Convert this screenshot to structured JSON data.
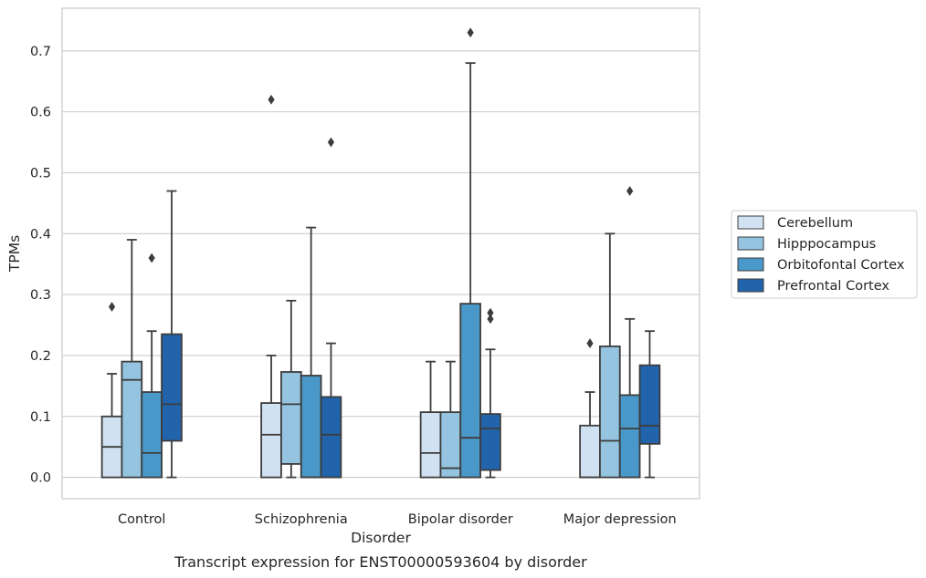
{
  "caption": "Transcript expression for ENST00000593604 by disorder",
  "chart_data": {
    "type": "boxplot",
    "xlabel": "Disorder",
    "ylabel": "TPMs",
    "ylim": [
      -0.035,
      0.77
    ],
    "yticks": [
      0.0,
      0.1,
      0.2,
      0.3,
      0.4,
      0.5,
      0.6,
      0.7
    ],
    "ytick_labels": [
      "0.0",
      "0.1",
      "0.2",
      "0.3",
      "0.4",
      "0.5",
      "0.6",
      "0.7"
    ],
    "grid": true,
    "legend_position": "right",
    "categories": [
      "Control",
      "Schizophrenia",
      "Bipolar disorder",
      "Major depression"
    ],
    "series": [
      {
        "name": "Cerebellum",
        "color": "#d0e1f2",
        "boxes": [
          {
            "whislo": 0.0,
            "q1": 0.0,
            "med": 0.05,
            "q3": 0.1,
            "whishi": 0.17,
            "fliers": [
              0.28
            ]
          },
          {
            "whislo": 0.0,
            "q1": 0.0,
            "med": 0.07,
            "q3": 0.122,
            "whishi": 0.2,
            "fliers": [
              0.62
            ]
          },
          {
            "whislo": 0.0,
            "q1": 0.0,
            "med": 0.04,
            "q3": 0.107,
            "whishi": 0.19,
            "fliers": []
          },
          {
            "whislo": 0.0,
            "q1": 0.0,
            "med": 0.0,
            "q3": 0.085,
            "whishi": 0.14,
            "fliers": [
              0.22
            ]
          }
        ]
      },
      {
        "name": "Hipppocampus",
        "color": "#94c4df",
        "boxes": [
          {
            "whislo": 0.0,
            "q1": 0.0,
            "med": 0.16,
            "q3": 0.19,
            "whishi": 0.39,
            "fliers": []
          },
          {
            "whislo": 0.0,
            "q1": 0.022,
            "med": 0.12,
            "q3": 0.173,
            "whishi": 0.29,
            "fliers": []
          },
          {
            "whislo": 0.0,
            "q1": 0.0,
            "med": 0.015,
            "q3": 0.107,
            "whishi": 0.19,
            "fliers": []
          },
          {
            "whislo": 0.0,
            "q1": 0.0,
            "med": 0.06,
            "q3": 0.215,
            "whishi": 0.4,
            "fliers": []
          }
        ]
      },
      {
        "name": "Orbitofontal Cortex",
        "color": "#4a98c9",
        "boxes": [
          {
            "whislo": 0.0,
            "q1": 0.0,
            "med": 0.04,
            "q3": 0.14,
            "whishi": 0.24,
            "fliers": [
              0.36
            ]
          },
          {
            "whislo": 0.0,
            "q1": 0.0,
            "med": 0.0,
            "q3": 0.167,
            "whishi": 0.41,
            "fliers": []
          },
          {
            "whislo": 0.0,
            "q1": 0.0,
            "med": 0.065,
            "q3": 0.285,
            "whishi": 0.68,
            "fliers": [
              0.73
            ]
          },
          {
            "whislo": 0.0,
            "q1": 0.0,
            "med": 0.08,
            "q3": 0.135,
            "whishi": 0.26,
            "fliers": [
              0.47
            ]
          }
        ]
      },
      {
        "name": "Prefrontal Cortex",
        "color": "#2164ab",
        "boxes": [
          {
            "whislo": 0.0,
            "q1": 0.06,
            "med": 0.12,
            "q3": 0.235,
            "whishi": 0.47,
            "fliers": []
          },
          {
            "whislo": 0.0,
            "q1": 0.0,
            "med": 0.07,
            "q3": 0.132,
            "whishi": 0.22,
            "fliers": [
              0.55
            ]
          },
          {
            "whislo": 0.0,
            "q1": 0.012,
            "med": 0.08,
            "q3": 0.104,
            "whishi": 0.21,
            "fliers": [
              0.26,
              0.27
            ]
          },
          {
            "whislo": 0.0,
            "q1": 0.055,
            "med": 0.085,
            "q3": 0.184,
            "whishi": 0.24,
            "fliers": []
          }
        ]
      }
    ]
  }
}
